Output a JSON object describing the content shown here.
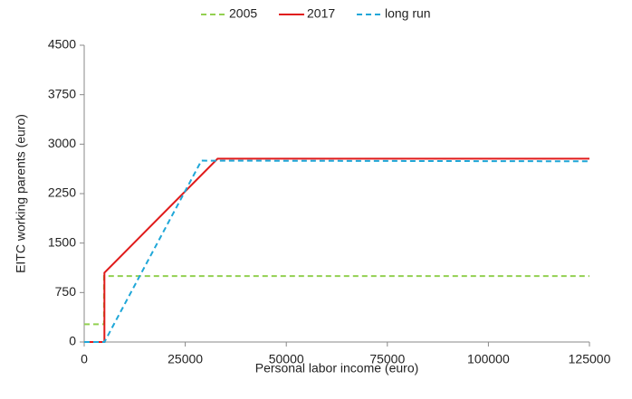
{
  "chart_data": {
    "type": "line",
    "x_label": "Personal labor income (euro)",
    "y_label": "EITC working parents (euro)",
    "xlim": [
      0,
      125000
    ],
    "xticks": [
      0,
      25000,
      50000,
      75000,
      100000,
      125000
    ],
    "ylim": [
      0,
      4500
    ],
    "yticks": [
      0,
      750,
      1500,
      2250,
      3000,
      3750,
      4500
    ],
    "grid": false,
    "legend": "top",
    "series": [
      {
        "name": "2005",
        "color": "#92d050",
        "dash": "dashed",
        "x": [
          0,
          4900,
          4900,
          125000
        ],
        "values": [
          270,
          270,
          1000,
          1000
        ]
      },
      {
        "name": "2017",
        "color": "#e01b1b",
        "dash": "solid",
        "x": [
          0,
          5000,
          5000,
          33000,
          125000
        ],
        "values": [
          0,
          0,
          1050,
          2780,
          2780
        ]
      },
      {
        "name": "long run",
        "color": "#1fa7d8",
        "dash": "dashed",
        "x": [
          0,
          5000,
          29000,
          125000
        ],
        "values": [
          0,
          0,
          2750,
          2740
        ]
      }
    ]
  }
}
